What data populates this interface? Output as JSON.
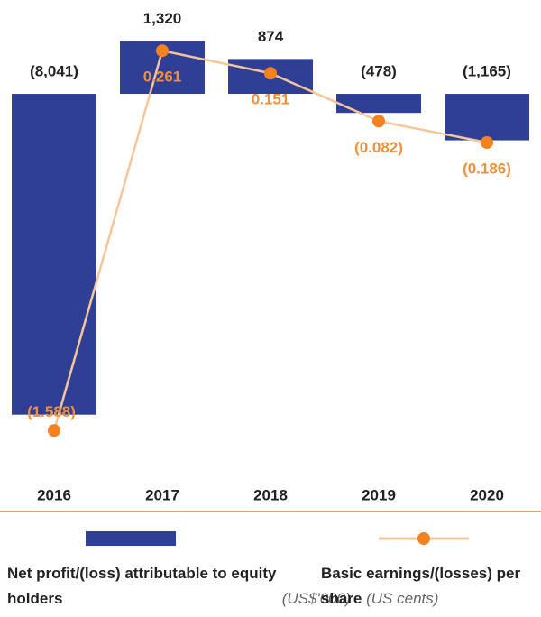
{
  "chart_data": {
    "type": "bar_line",
    "categories": [
      "2016",
      "2017",
      "2018",
      "2019",
      "2020"
    ],
    "series": [
      {
        "name": "Net profit/(loss) attributable to equity holders",
        "unit": "(US$'000)",
        "color": "#2e3f95",
        "type": "bar",
        "values": [
          -8041,
          1320,
          874,
          -478,
          -1165
        ],
        "value_labels": [
          "(8,041)",
          "1,320",
          "874",
          "(478)",
          "(1,165)"
        ]
      },
      {
        "name": "Basic earnings/(losses) per share",
        "unit": "(US cents)",
        "color": "#f58220",
        "line_color": "#f7c59a",
        "label_color": "#f0913a",
        "type": "line",
        "axis": "y2",
        "values": [
          -1.588,
          0.261,
          0.151,
          -0.082,
          -0.186
        ],
        "value_labels": [
          "(1.588)",
          "0.261",
          "0.151",
          "(0.082)",
          "(0.186)"
        ]
      }
    ],
    "ylim": [
      -8500,
      1900
    ],
    "y2lim": [
      -1.6,
      0.42
    ]
  }
}
